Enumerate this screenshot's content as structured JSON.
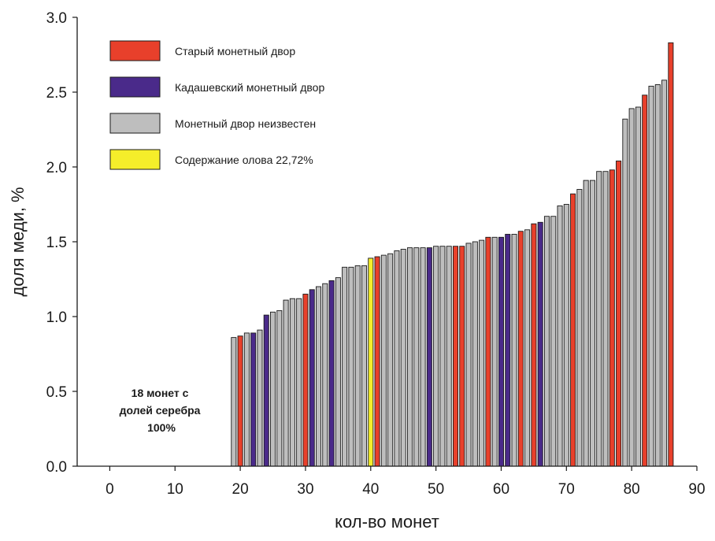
{
  "chart_data": {
    "type": "bar",
    "xlabel": "кол-во монет",
    "ylabel": "доля меди, %",
    "xlim": [
      -5,
      90
    ],
    "ylim": [
      0,
      3.0
    ],
    "x_ticks": [
      "0",
      "10",
      "20",
      "30",
      "40",
      "50",
      "60",
      "70",
      "80",
      "90"
    ],
    "y_ticks": [
      "0.0",
      "0.5",
      "1.0",
      "1.5",
      "2.0",
      "2.5",
      "3.0"
    ],
    "grid": false,
    "legend_position": "top-left",
    "legend": [
      {
        "key": "old",
        "label": "Старый монетный двор",
        "color": "#e8402b"
      },
      {
        "key": "kad",
        "label": "Кадашевский монетный двор",
        "color": "#4a2a8a"
      },
      {
        "key": "unk",
        "label": "Монетный двор неизвестен",
        "color": "#bebebe"
      },
      {
        "key": "tin",
        "label": "Содержание олова 22,72%",
        "color": "#f5ee2a"
      }
    ],
    "annotation": [
      "18 монет с",
      "долей серебра",
      "100%"
    ],
    "bars": [
      {
        "x": 19,
        "y": 0.86,
        "cat": "unk"
      },
      {
        "x": 20,
        "y": 0.87,
        "cat": "old"
      },
      {
        "x": 21,
        "y": 0.89,
        "cat": "unk"
      },
      {
        "x": 22,
        "y": 0.89,
        "cat": "kad"
      },
      {
        "x": 23,
        "y": 0.91,
        "cat": "unk"
      },
      {
        "x": 24,
        "y": 1.01,
        "cat": "kad"
      },
      {
        "x": 25,
        "y": 1.03,
        "cat": "unk"
      },
      {
        "x": 26,
        "y": 1.04,
        "cat": "unk"
      },
      {
        "x": 27,
        "y": 1.11,
        "cat": "unk"
      },
      {
        "x": 28,
        "y": 1.12,
        "cat": "unk"
      },
      {
        "x": 29,
        "y": 1.12,
        "cat": "unk"
      },
      {
        "x": 30,
        "y": 1.15,
        "cat": "old"
      },
      {
        "x": 31,
        "y": 1.18,
        "cat": "kad"
      },
      {
        "x": 32,
        "y": 1.2,
        "cat": "unk"
      },
      {
        "x": 33,
        "y": 1.22,
        "cat": "unk"
      },
      {
        "x": 34,
        "y": 1.24,
        "cat": "kad"
      },
      {
        "x": 35,
        "y": 1.26,
        "cat": "unk"
      },
      {
        "x": 36,
        "y": 1.33,
        "cat": "unk"
      },
      {
        "x": 37,
        "y": 1.33,
        "cat": "unk"
      },
      {
        "x": 38,
        "y": 1.34,
        "cat": "unk"
      },
      {
        "x": 39,
        "y": 1.34,
        "cat": "unk"
      },
      {
        "x": 40,
        "y": 1.39,
        "cat": "tin"
      },
      {
        "x": 41,
        "y": 1.4,
        "cat": "old"
      },
      {
        "x": 42,
        "y": 1.41,
        "cat": "unk"
      },
      {
        "x": 43,
        "y": 1.42,
        "cat": "unk"
      },
      {
        "x": 44,
        "y": 1.44,
        "cat": "unk"
      },
      {
        "x": 45,
        "y": 1.45,
        "cat": "unk"
      },
      {
        "x": 46,
        "y": 1.46,
        "cat": "unk"
      },
      {
        "x": 47,
        "y": 1.46,
        "cat": "unk"
      },
      {
        "x": 48,
        "y": 1.46,
        "cat": "unk"
      },
      {
        "x": 49,
        "y": 1.46,
        "cat": "kad"
      },
      {
        "x": 50,
        "y": 1.47,
        "cat": "unk"
      },
      {
        "x": 51,
        "y": 1.47,
        "cat": "unk"
      },
      {
        "x": 52,
        "y": 1.47,
        "cat": "unk"
      },
      {
        "x": 53,
        "y": 1.47,
        "cat": "old"
      },
      {
        "x": 54,
        "y": 1.47,
        "cat": "old"
      },
      {
        "x": 55,
        "y": 1.49,
        "cat": "unk"
      },
      {
        "x": 56,
        "y": 1.5,
        "cat": "unk"
      },
      {
        "x": 57,
        "y": 1.51,
        "cat": "unk"
      },
      {
        "x": 58,
        "y": 1.53,
        "cat": "old"
      },
      {
        "x": 59,
        "y": 1.53,
        "cat": "unk"
      },
      {
        "x": 60,
        "y": 1.53,
        "cat": "kad"
      },
      {
        "x": 61,
        "y": 1.55,
        "cat": "kad"
      },
      {
        "x": 62,
        "y": 1.55,
        "cat": "unk"
      },
      {
        "x": 63,
        "y": 1.57,
        "cat": "old"
      },
      {
        "x": 64,
        "y": 1.58,
        "cat": "unk"
      },
      {
        "x": 65,
        "y": 1.62,
        "cat": "old"
      },
      {
        "x": 66,
        "y": 1.63,
        "cat": "kad"
      },
      {
        "x": 67,
        "y": 1.67,
        "cat": "unk"
      },
      {
        "x": 68,
        "y": 1.67,
        "cat": "unk"
      },
      {
        "x": 69,
        "y": 1.74,
        "cat": "unk"
      },
      {
        "x": 70,
        "y": 1.75,
        "cat": "unk"
      },
      {
        "x": 71,
        "y": 1.82,
        "cat": "old"
      },
      {
        "x": 72,
        "y": 1.85,
        "cat": "unk"
      },
      {
        "x": 73,
        "y": 1.91,
        "cat": "unk"
      },
      {
        "x": 74,
        "y": 1.91,
        "cat": "unk"
      },
      {
        "x": 75,
        "y": 1.97,
        "cat": "unk"
      },
      {
        "x": 76,
        "y": 1.97,
        "cat": "unk"
      },
      {
        "x": 77,
        "y": 1.98,
        "cat": "old"
      },
      {
        "x": 78,
        "y": 2.04,
        "cat": "old"
      },
      {
        "x": 79,
        "y": 2.32,
        "cat": "unk"
      },
      {
        "x": 80,
        "y": 2.39,
        "cat": "unk"
      },
      {
        "x": 81,
        "y": 2.4,
        "cat": "unk"
      },
      {
        "x": 82,
        "y": 2.48,
        "cat": "old"
      },
      {
        "x": 83,
        "y": 2.54,
        "cat": "unk"
      },
      {
        "x": 84,
        "y": 2.55,
        "cat": "unk"
      },
      {
        "x": 85,
        "y": 2.58,
        "cat": "unk"
      },
      {
        "x": 86,
        "y": 2.83,
        "cat": "old"
      }
    ]
  }
}
